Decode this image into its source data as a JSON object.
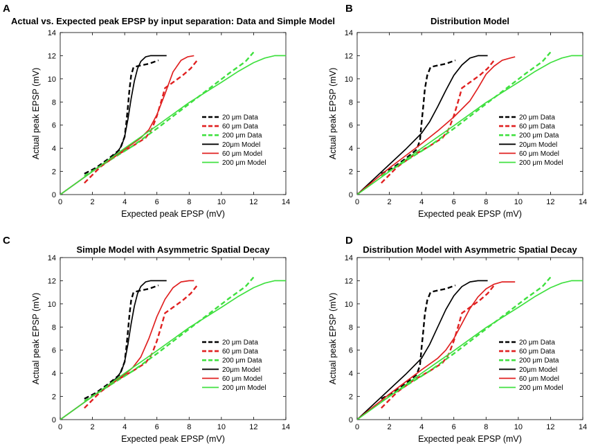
{
  "chart_data": [
    {
      "letter": "A",
      "title": "Actual vs. Expected peak EPSP by input separation: Data and Simple Model",
      "type": "line",
      "xlabel": "Expected peak EPSP (mV)",
      "ylabel": "Actual peak EPSP (mV)",
      "xlim": [
        0,
        14
      ],
      "ylim": [
        0,
        14
      ],
      "xticks": [
        0,
        2,
        4,
        6,
        8,
        10,
        12,
        14
      ],
      "yticks": [
        0,
        2,
        4,
        6,
        8,
        10,
        12,
        14
      ],
      "legend_position": "right-middle",
      "series": [
        {
          "name": "20 μm Data",
          "color": "#000000",
          "style": "dashed",
          "x": [
            1.5,
            2.2,
            3.0,
            3.7,
            4.0,
            4.1,
            4.2,
            4.3,
            4.4,
            4.55,
            4.8,
            5.5,
            6.1
          ],
          "y": [
            1.8,
            2.3,
            3.1,
            3.9,
            5.0,
            6.2,
            7.6,
            9.1,
            10.3,
            11.0,
            11.1,
            11.3,
            11.6
          ]
        },
        {
          "name": "60 μm Data",
          "color": "#e02020",
          "style": "dashed",
          "x": [
            1.5,
            2.5,
            3.5,
            4.5,
            5.3,
            5.7,
            6.0,
            6.3,
            6.5,
            7.0,
            7.6,
            8.1,
            8.5
          ],
          "y": [
            1.0,
            2.4,
            3.4,
            4.2,
            4.9,
            5.7,
            6.8,
            8.2,
            9.2,
            9.7,
            10.3,
            10.9,
            11.6
          ]
        },
        {
          "name": "200 μm Data",
          "color": "#3fe03f",
          "style": "dashed",
          "x": [
            1.5,
            3.0,
            4.5,
            6.0,
            7.5,
            9.0,
            10.5,
            11.5,
            12.0
          ],
          "y": [
            1.6,
            2.9,
            4.2,
            5.7,
            7.3,
            8.9,
            10.5,
            11.5,
            12.3
          ]
        },
        {
          "name": "20μm Model",
          "color": "#000000",
          "style": "solid",
          "x": [
            0,
            1,
            2,
            3,
            3.5,
            3.8,
            4.0,
            4.2,
            4.4,
            4.6,
            4.8,
            5.0,
            5.3,
            5.6,
            6.0,
            6.6
          ],
          "y": [
            0,
            1.0,
            2.0,
            3.0,
            3.6,
            4.2,
            5.0,
            6.5,
            8.3,
            9.8,
            10.9,
            11.5,
            11.9,
            12.0,
            12.0,
            12.0
          ]
        },
        {
          "name": "60 μm Model",
          "color": "#e02020",
          "style": "solid",
          "x": [
            0,
            2,
            4,
            5,
            5.5,
            6.0,
            6.5,
            7.0,
            7.5,
            7.9,
            8.3
          ],
          "y": [
            0,
            2.0,
            3.9,
            4.9,
            5.6,
            6.9,
            8.7,
            10.6,
            11.6,
            11.9,
            12.0
          ]
        },
        {
          "name": "200 μm Model",
          "color": "#3fe03f",
          "style": "solid",
          "x": [
            0,
            2,
            4,
            6,
            8,
            10,
            11,
            12,
            12.7,
            13.3,
            14
          ],
          "y": [
            0,
            2.0,
            4.0,
            5.95,
            7.95,
            9.7,
            10.6,
            11.4,
            11.8,
            12.0,
            12.0
          ]
        }
      ]
    },
    {
      "letter": "B",
      "title": "Distribution Model",
      "type": "line",
      "xlabel": "Expected peak EPSP (mV)",
      "ylabel": "Actual peak EPSP (mV)",
      "xlim": [
        0,
        14
      ],
      "ylim": [
        0,
        14
      ],
      "xticks": [
        0,
        2,
        4,
        6,
        8,
        10,
        12,
        14
      ],
      "yticks": [
        0,
        2,
        4,
        6,
        8,
        10,
        12,
        14
      ],
      "legend_position": "right-middle",
      "series": [
        {
          "name": "20 μm Data",
          "color": "#000000",
          "style": "dashed",
          "x": [
            1.5,
            2.2,
            3.0,
            3.7,
            3.9,
            4.0,
            4.1,
            4.2,
            4.35,
            4.55,
            4.8,
            5.5,
            6.1
          ],
          "y": [
            1.8,
            2.3,
            3.1,
            3.9,
            4.7,
            6.2,
            7.6,
            9.1,
            10.3,
            11.0,
            11.1,
            11.3,
            11.6
          ]
        },
        {
          "name": "60 μm Data",
          "color": "#e02020",
          "style": "dashed",
          "x": [
            1.5,
            2.5,
            3.5,
            4.5,
            5.3,
            5.7,
            6.0,
            6.3,
            6.5,
            7.0,
            7.6,
            8.1,
            8.5
          ],
          "y": [
            1.0,
            2.4,
            3.4,
            4.2,
            4.9,
            5.7,
            6.8,
            8.2,
            9.2,
            9.7,
            10.3,
            10.9,
            11.6
          ]
        },
        {
          "name": "200 μm Data",
          "color": "#3fe03f",
          "style": "dashed",
          "x": [
            1.5,
            3.0,
            4.5,
            6.0,
            7.5,
            9.0,
            10.5,
            11.5,
            12.0
          ],
          "y": [
            1.6,
            2.9,
            4.2,
            5.7,
            7.3,
            8.9,
            10.5,
            11.5,
            12.3
          ]
        },
        {
          "name": "20μm Model",
          "color": "#000000",
          "style": "solid",
          "x": [
            0,
            1,
            2,
            3,
            4,
            4.5,
            5.0,
            5.5,
            6.0,
            6.5,
            7.0,
            7.5,
            8.1
          ],
          "y": [
            0,
            1.3,
            2.6,
            3.9,
            5.3,
            6.3,
            7.6,
            9.0,
            10.3,
            11.2,
            11.8,
            12.0,
            12.0
          ]
        },
        {
          "name": "60 μm Model",
          "color": "#e02020",
          "style": "solid",
          "x": [
            0,
            2,
            4,
            5,
            6,
            7,
            7.5,
            8.0,
            8.5,
            9.0,
            9.5,
            9.8
          ],
          "y": [
            0,
            2.3,
            4.4,
            5.5,
            6.7,
            8.1,
            9.2,
            10.4,
            11.1,
            11.6,
            11.8,
            11.9
          ]
        },
        {
          "name": "200 μm Model",
          "color": "#3fe03f",
          "style": "solid",
          "x": [
            0,
            2,
            4,
            6,
            8,
            10,
            11,
            12,
            12.7,
            13.3,
            14
          ],
          "y": [
            0,
            2.0,
            4.0,
            5.95,
            7.95,
            9.7,
            10.6,
            11.4,
            11.8,
            12.0,
            12.0
          ]
        }
      ]
    },
    {
      "letter": "C",
      "title": "Simple Model with Asymmetric Spatial Decay",
      "type": "line",
      "xlabel": "Expected peak EPSP (mV)",
      "ylabel": "Actual peak EPSP (mV)",
      "xlim": [
        0,
        14
      ],
      "ylim": [
        0,
        14
      ],
      "xticks": [
        0,
        2,
        4,
        6,
        8,
        10,
        12,
        14
      ],
      "yticks": [
        0,
        2,
        4,
        6,
        8,
        10,
        12,
        14
      ],
      "legend_position": "right-middle",
      "series": [
        {
          "name": "20 μm Data",
          "color": "#000000",
          "style": "dashed",
          "x": [
            1.5,
            2.2,
            3.0,
            3.7,
            4.0,
            4.1,
            4.2,
            4.3,
            4.4,
            4.55,
            4.8,
            5.5,
            6.1
          ],
          "y": [
            1.8,
            2.3,
            3.1,
            3.9,
            5.0,
            6.2,
            7.6,
            9.1,
            10.3,
            11.0,
            11.1,
            11.3,
            11.6
          ]
        },
        {
          "name": "60 μm Data",
          "color": "#e02020",
          "style": "dashed",
          "x": [
            1.5,
            2.5,
            3.5,
            4.5,
            5.3,
            5.7,
            6.0,
            6.3,
            6.5,
            7.0,
            7.6,
            8.1,
            8.5
          ],
          "y": [
            1.0,
            2.4,
            3.4,
            4.2,
            4.9,
            5.7,
            6.8,
            8.2,
            9.2,
            9.7,
            10.3,
            10.9,
            11.6
          ]
        },
        {
          "name": "200 μm Data",
          "color": "#3fe03f",
          "style": "dashed",
          "x": [
            1.5,
            3.0,
            4.5,
            6.0,
            7.5,
            9.0,
            10.5,
            11.5,
            12.0
          ],
          "y": [
            1.6,
            2.9,
            4.2,
            5.7,
            7.3,
            8.9,
            10.5,
            11.5,
            12.3
          ]
        },
        {
          "name": "20μm Model",
          "color": "#000000",
          "style": "solid",
          "x": [
            0,
            1,
            2,
            3,
            3.5,
            3.8,
            4.0,
            4.2,
            4.4,
            4.6,
            4.8,
            5.0,
            5.3,
            5.6,
            6.0,
            6.6
          ],
          "y": [
            0,
            1.0,
            2.0,
            3.0,
            3.6,
            4.2,
            5.0,
            6.5,
            8.3,
            9.8,
            10.9,
            11.5,
            11.9,
            12.0,
            12.0,
            12.0
          ]
        },
        {
          "name": "60 μm Model",
          "color": "#e02020",
          "style": "solid",
          "x": [
            0,
            2,
            3,
            4,
            4.5,
            5.0,
            5.5,
            6.0,
            6.5,
            7.0,
            7.5,
            8.0,
            8.3
          ],
          "y": [
            0,
            2.0,
            3.0,
            3.9,
            4.5,
            5.4,
            7.0,
            8.9,
            10.4,
            11.4,
            11.9,
            12.0,
            12.0
          ]
        },
        {
          "name": "200 μm Model",
          "color": "#3fe03f",
          "style": "solid",
          "x": [
            0,
            2,
            4,
            6,
            8,
            10,
            11,
            12,
            12.7,
            13.3,
            14
          ],
          "y": [
            0,
            2.0,
            4.0,
            5.95,
            7.95,
            9.7,
            10.6,
            11.4,
            11.8,
            12.0,
            12.0
          ]
        }
      ]
    },
    {
      "letter": "D",
      "title": "Distribution Model with Asymmetric Spatial Decay",
      "type": "line",
      "xlabel": "Expected peak EPSP (mV)",
      "ylabel": "Actual peak EPSP (mV)",
      "xlim": [
        0,
        14
      ],
      "ylim": [
        0,
        14
      ],
      "xticks": [
        0,
        2,
        4,
        6,
        8,
        10,
        12,
        14
      ],
      "yticks": [
        0,
        2,
        4,
        6,
        8,
        10,
        12,
        14
      ],
      "legend_position": "right-middle",
      "series": [
        {
          "name": "20 μm Data",
          "color": "#000000",
          "style": "dashed",
          "x": [
            1.5,
            2.2,
            3.0,
            3.7,
            3.9,
            4.0,
            4.1,
            4.2,
            4.35,
            4.55,
            4.8,
            5.5,
            6.1
          ],
          "y": [
            1.8,
            2.3,
            3.1,
            3.9,
            4.7,
            6.2,
            7.6,
            9.1,
            10.3,
            11.0,
            11.1,
            11.3,
            11.6
          ]
        },
        {
          "name": "60 μm Data",
          "color": "#e02020",
          "style": "dashed",
          "x": [
            1.5,
            2.5,
            3.5,
            4.5,
            5.3,
            5.7,
            6.0,
            6.3,
            6.5,
            7.0,
            7.6,
            8.1,
            8.5
          ],
          "y": [
            1.0,
            2.4,
            3.4,
            4.2,
            4.9,
            5.7,
            6.8,
            8.2,
            9.2,
            9.7,
            10.3,
            10.9,
            11.6
          ]
        },
        {
          "name": "200 μm Data",
          "color": "#3fe03f",
          "style": "dashed",
          "x": [
            1.5,
            3.0,
            4.5,
            6.0,
            7.5,
            9.0,
            10.5,
            11.5,
            12.0
          ],
          "y": [
            1.6,
            2.9,
            4.2,
            5.7,
            7.3,
            8.9,
            10.5,
            11.5,
            12.3
          ]
        },
        {
          "name": "20μm Model",
          "color": "#000000",
          "style": "solid",
          "x": [
            0,
            1,
            2,
            3,
            4,
            4.5,
            5.0,
            5.5,
            6.0,
            6.5,
            7.0,
            7.5,
            8.1
          ],
          "y": [
            0,
            1.3,
            2.6,
            3.9,
            5.3,
            6.5,
            8.0,
            9.5,
            10.7,
            11.5,
            11.9,
            12.0,
            12.0
          ]
        },
        {
          "name": "60 μm Model",
          "color": "#e02020",
          "style": "solid",
          "x": [
            0,
            2,
            4,
            5,
            5.5,
            6.0,
            6.5,
            7.0,
            7.5,
            8.0,
            8.5,
            9.0,
            9.8
          ],
          "y": [
            0,
            2.2,
            4.3,
            5.3,
            6.0,
            7.0,
            8.3,
            9.6,
            10.6,
            11.3,
            11.7,
            11.9,
            11.9
          ]
        },
        {
          "name": "200 μm Model",
          "color": "#3fe03f",
          "style": "solid",
          "x": [
            0,
            2,
            4,
            6,
            8,
            10,
            11,
            12,
            12.7,
            13.3,
            14
          ],
          "y": [
            0,
            2.0,
            4.0,
            5.95,
            7.95,
            9.7,
            10.6,
            11.4,
            11.8,
            12.0,
            12.0
          ]
        }
      ]
    }
  ]
}
